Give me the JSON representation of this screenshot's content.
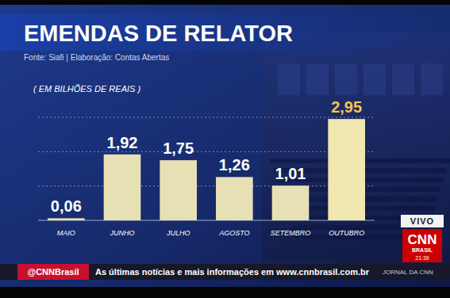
{
  "chart_data": {
    "type": "bar",
    "title": "EMENDAS DE RELATOR",
    "subtitle": "Fonte: Siafi | Elaboração: Contas Abertas",
    "ylabel": "( EM BILHÕES DE REAIS )",
    "categories": [
      "MAIO",
      "JUNHO",
      "JULHO",
      "AGOSTO",
      "SETEMBRO",
      "OUTUBRO"
    ],
    "values": [
      0.06,
      1.92,
      1.75,
      1.26,
      1.01,
      2.95
    ],
    "value_labels": [
      "0,06",
      "1,92",
      "1,75",
      "1,26",
      "1,01",
      "2,95"
    ],
    "colors": [
      "#e6e0b4",
      "#e6e0b4",
      "#e6e0b4",
      "#e6e0b4",
      "#e6e0b4",
      "#f1e7b0"
    ],
    "ylim": [
      0,
      3
    ],
    "yticks": [
      0,
      1,
      2,
      3
    ],
    "grid": true,
    "data_labels": true,
    "tick_labels": "x"
  },
  "broadcast": {
    "live": "VIVO",
    "logo": "CNN",
    "logo_sub": "BRASIL",
    "time": "21:39",
    "handle": "@CNNBrasil",
    "ticker": "As últimas notícias e mais informações em www.cnnbrasil.com.br",
    "program": "JORNAL DA CNN"
  }
}
